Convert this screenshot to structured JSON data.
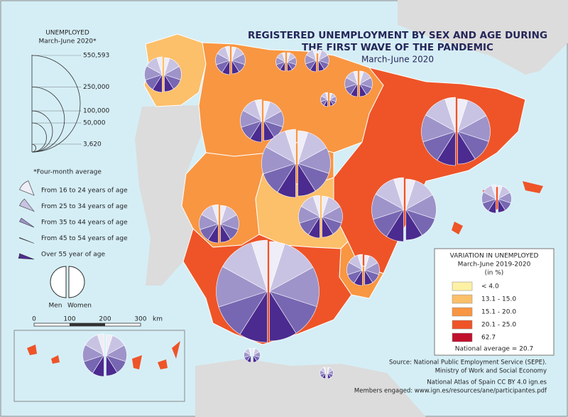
{
  "title": [
    "REGISTERED UNEMPLOYMENT BY SEX AND AGE DURING",
    "THE FIRST WAVE OF THE PANDEMIC"
  ],
  "subtitle": "March-June 2020",
  "size_legend": {
    "title": [
      "UNEMPLOYED",
      "March-June 2020*"
    ],
    "values": [
      {
        "value": 550593,
        "label": "550,593"
      },
      {
        "value": 250000,
        "label": "250,000"
      },
      {
        "value": 100000,
        "label": "100,000"
      },
      {
        "value": 50000,
        "label": "50,000"
      },
      {
        "value": 3620,
        "label": "3,620"
      }
    ],
    "note": "*Four-month average"
  },
  "age_legend": [
    {
      "label": "From 16 to 24 years of age",
      "color": "#efedf7"
    },
    {
      "label": "From 25 to 34 years of age",
      "color": "#c9c3e3"
    },
    {
      "label": "From 35 to 44 years of age",
      "color": "#9e94ca"
    },
    {
      "label": "From 45 to 54 years of age",
      "color": "#7767b2"
    },
    {
      "label": "Over 55 year of age",
      "color": "#4b2b8f"
    }
  ],
  "sex_legend": [
    "Men",
    "Women"
  ],
  "scale": {
    "ticks": [
      "0",
      "100",
      "200",
      "300"
    ],
    "unit": "km"
  },
  "variation_legend": {
    "title": [
      "VARIATION IN UNEMPLOYED",
      "March-June 2019-2020",
      "(in %)"
    ],
    "classes": [
      {
        "label": "< 4.0",
        "color": "#fdf1a6"
      },
      {
        "label": "13.1 - 15.0",
        "color": "#fcbf6a"
      },
      {
        "label": "15.1 - 20.0",
        "color": "#f89642"
      },
      {
        "label": "20.1 - 25.0",
        "color": "#ee5428"
      },
      {
        "label": "62.7",
        "color": "#c0102c"
      }
    ],
    "national_average": "National average = 20.7"
  },
  "source": [
    "Source: National Public Employment Service (SEPE).",
    "Ministry of Work and Social Economy",
    "National Atlas of Spain CC BY 4.0 ign.es",
    "Members engaged: www.ign.es/resources/ane/participantes.pdf"
  ]
}
